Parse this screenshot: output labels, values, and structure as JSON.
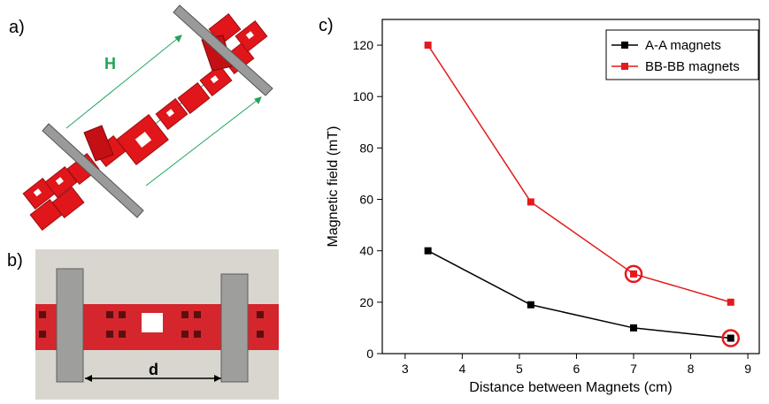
{
  "panels": {
    "a_label": "a)",
    "b_label": "b)",
    "c_label": "c)"
  },
  "render_a": {
    "dimension_label": "H",
    "dimension_color": "#22a35a",
    "material_color": "#e0161b",
    "bar_color": "#9a9a9a"
  },
  "photo_b": {
    "dimension_label": "d",
    "background_color": "#d9d6d0",
    "material_color": "#d4262c",
    "magnet_color": "#9e9f9c"
  },
  "chart_data": {
    "type": "line",
    "xlabel": "Distance between Magnets (cm)",
    "ylabel": "Magnetic field (mT)",
    "xlim": [
      2.6,
      9.2
    ],
    "ylim": [
      0,
      130
    ],
    "xticks": [
      3,
      4,
      5,
      6,
      7,
      8,
      9
    ],
    "yticks": [
      0,
      20,
      40,
      60,
      80,
      100,
      120
    ],
    "legend_position": "top-right",
    "series": [
      {
        "name": "A-A magnets",
        "color": "#000000",
        "x": [
          3.4,
          5.2,
          7.0,
          8.7
        ],
        "y": [
          40,
          19,
          10,
          6
        ],
        "highlight_index": 3
      },
      {
        "name": "BB-BB magnets",
        "color": "#e31a1c",
        "x": [
          3.4,
          5.2,
          7.0,
          8.7
        ],
        "y": [
          120,
          59,
          31,
          20
        ],
        "highlight_index": 2
      }
    ],
    "highlight_color": "#e31a1c"
  }
}
